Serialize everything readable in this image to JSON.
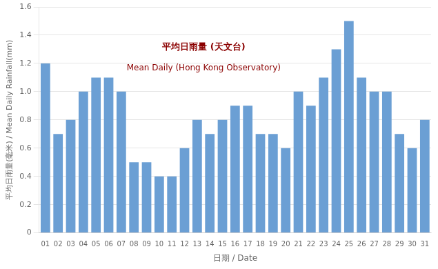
{
  "chart_data": {
    "type": "bar",
    "categories": [
      "01",
      "02",
      "03",
      "04",
      "05",
      "06",
      "07",
      "08",
      "09",
      "10",
      "11",
      "12",
      "13",
      "14",
      "15",
      "16",
      "17",
      "18",
      "19",
      "20",
      "21",
      "22",
      "23",
      "24",
      "25",
      "26",
      "27",
      "28",
      "29",
      "30",
      "31"
    ],
    "values": [
      1.2,
      0.7,
      0.8,
      1.0,
      1.1,
      1.1,
      1.0,
      0.5,
      0.5,
      0.4,
      0.4,
      0.6,
      0.8,
      0.7,
      0.8,
      0.9,
      0.9,
      0.7,
      0.7,
      0.6,
      1.0,
      0.9,
      1.1,
      1.3,
      1.5,
      1.1,
      1.0,
      1.0,
      0.7,
      0.6,
      0.8
    ],
    "color": "#6b9fd4",
    "xlabel": "日期 / Date",
    "ylabel": "平均日雨量(毫米) / Mean Daily Rainfall(mm)",
    "annotations": [
      "平均日雨量 (天文台)",
      "Mean Daily (Hong Kong Observatory)"
    ],
    "ylim": [
      0,
      1.6
    ],
    "yticks": [
      0,
      0.2,
      0.4,
      0.6,
      0.8,
      {
        "value": 1.0,
        "label": "1.0"
      },
      1.2,
      1.4,
      1.6
    ],
    "grid": true
  }
}
